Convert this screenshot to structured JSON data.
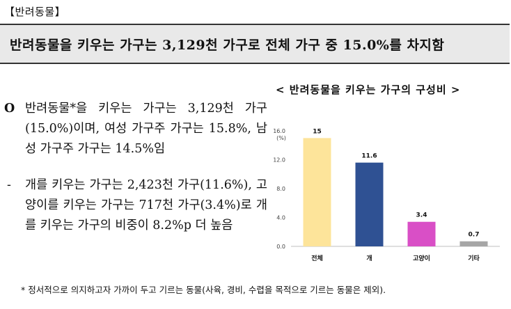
{
  "section": {
    "tag": "【반려동물】"
  },
  "headline": "반려동물을 키우는 가구는 3,129천 가구로 전체 가구 중 15.0%를 차지함",
  "body": {
    "main_mark": "O",
    "main_text": "반려동물*을 키우는 가구는 3,129천 가구(15.0%)이며, 여성 가구주 가구는 15.8%, 남성 가구주 가구는 14.5%임",
    "sub_mark": "-",
    "sub_text": "개를 키우는 가구는 2,423천 가구(11.6%), 고양이를 키우는 가구는 717천 가구(3.4%)로 개를 키우는 가구의 비중이 8.2%p 더 높음"
  },
  "footnote": "* 정서적으로 의지하고자 가까이 두고 기르는 동물(사육, 경비, 수렵을 목적으로 기르는 동물은 제외).",
  "chart_title": "< 반려동물을 키우는 가구의 구성비 >",
  "chart_data": {
    "type": "bar",
    "unit_label": "(%)",
    "categories": [
      "전체",
      "개",
      "고양이",
      "기타"
    ],
    "values": [
      15,
      11.6,
      3.4,
      0.7
    ],
    "data_labels": [
      "15",
      "11.6",
      "3.4",
      "0.7"
    ],
    "ylim": [
      0,
      16
    ],
    "yticks": [
      "0.0",
      "4.0",
      "8.0",
      "12.0",
      "16.0"
    ],
    "colors": [
      "#fde49a",
      "#2f5193",
      "#d94fc6",
      "#a6a6a6"
    ]
  }
}
